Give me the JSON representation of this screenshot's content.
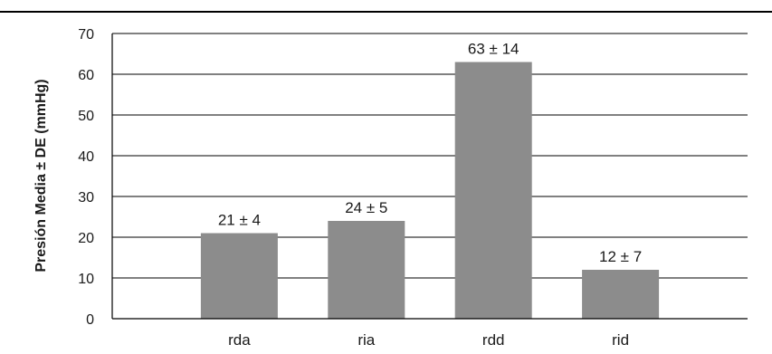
{
  "chart_data": {
    "type": "bar",
    "title": "",
    "xlabel": "",
    "ylabel": "Presión Media  ± DE (mmHg)",
    "categories": [
      "rda",
      "ria",
      "rdd",
      "rid"
    ],
    "values": [
      21,
      24,
      63,
      12
    ],
    "data_labels": [
      "21 ± 4",
      "24 ± 5",
      "63 ± 14",
      "12 ± 7"
    ],
    "ylim": [
      0,
      70
    ],
    "yticks": [
      "0",
      "10",
      "20",
      "30",
      "40",
      "50",
      "60",
      "70"
    ],
    "grid": true,
    "legend": "none",
    "colors": {
      "bar": "#8c8c8c",
      "axis": "#000000",
      "grid": "#000000"
    }
  }
}
